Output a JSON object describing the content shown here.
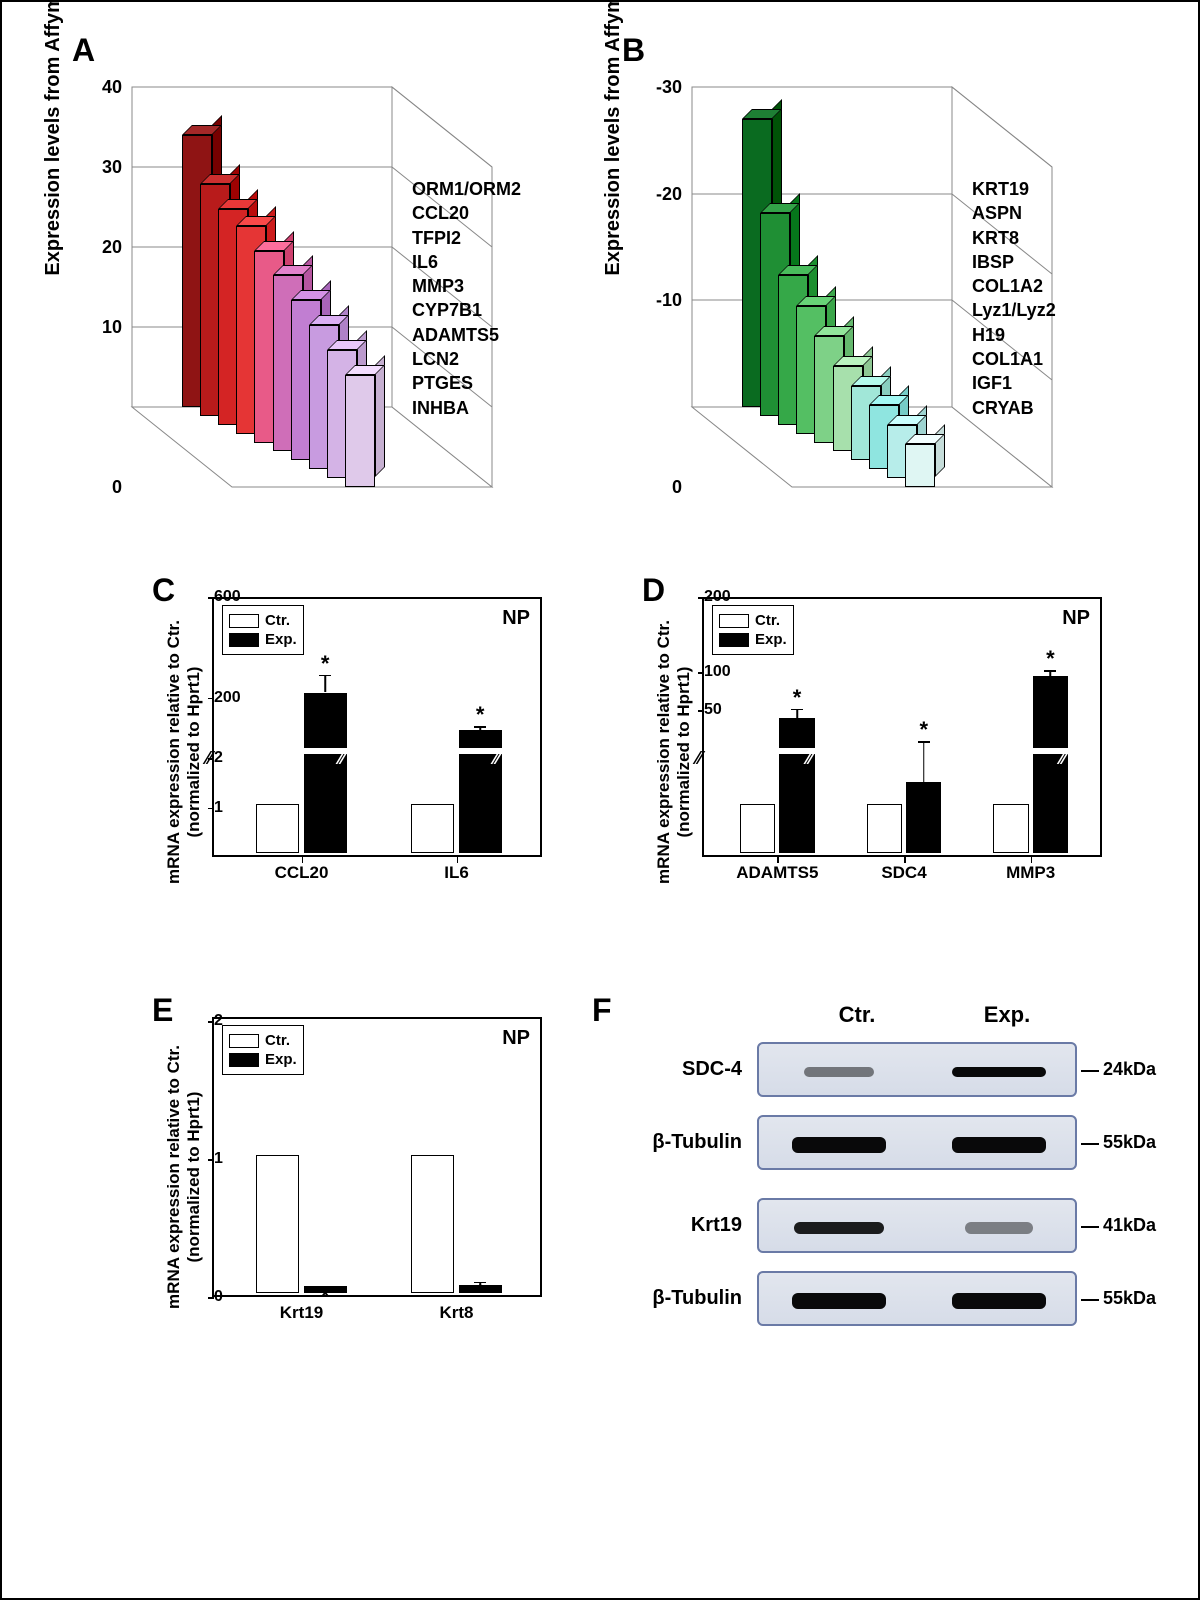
{
  "panelA": {
    "label": "A",
    "type": "3d-bar",
    "ylabel": "Expression levels from Affymetrix array",
    "yticks": [
      0,
      10,
      20,
      30,
      40
    ],
    "ylim": [
      0,
      40
    ],
    "genes": [
      "ORM1/ORM2",
      "CCL20",
      "TFPI2",
      "IL6",
      "MMP3",
      "CYP7B1",
      "ADAMTS5",
      "LCN2",
      "PTGES",
      "INHBA"
    ],
    "values_back_to_front": [
      34,
      29,
      27,
      26,
      24,
      22,
      20,
      18,
      16,
      14
    ],
    "colors_back_to_front": [
      "#8f1414",
      "#b81b1b",
      "#d42424",
      "#e53535",
      "#e85a88",
      "#cf6eb8",
      "#c17ed2",
      "#c89be0",
      "#d4b3e6",
      "#dfc9ea"
    ],
    "grid_color": "#888888",
    "floor_color": "#ffffff",
    "wall_color": "#ffffff"
  },
  "panelB": {
    "label": "B",
    "type": "3d-bar",
    "ylabel": "Expression levels from Affymetrix array",
    "yticks": [
      0,
      -10,
      -20,
      -30
    ],
    "ylim": [
      0,
      -30
    ],
    "genes": [
      "KRT19",
      "ASPN",
      "KRT8",
      "IBSP",
      "COL1A2",
      "Lyz1/Lyz2",
      "H19",
      "COL1A1",
      "IGF1",
      "CRYAB"
    ],
    "values_back_to_front": [
      -27,
      -19,
      -14,
      -12,
      -10,
      -8,
      -7,
      -6,
      -5,
      -4
    ],
    "colors_back_to_front": [
      "#0a6b20",
      "#1f8f34",
      "#35a848",
      "#54bf63",
      "#7ed187",
      "#a7e0ac",
      "#a1e7d8",
      "#8fe5e0",
      "#b7edea",
      "#dff6f3"
    ],
    "grid_color": "#888888"
  },
  "panelC": {
    "label": "C",
    "type": "bar-broken-axis",
    "ylabel_line1": "mRNA expression  relative to Ctr.",
    "ylabel_line2": "(normalized to Hprt1)",
    "np": "NP",
    "legend": {
      "ctr": "Ctr.",
      "exp": "Exp."
    },
    "categories": [
      "CCL20",
      "IL6"
    ],
    "lower_seg": {
      "range": [
        0,
        2
      ],
      "ticks": [
        1,
        2
      ]
    },
    "upper_seg": {
      "range": [
        0,
        600
      ],
      "ticks": [
        200,
        600
      ]
    },
    "ctr_values": [
      1,
      1
    ],
    "exp_values": [
      220,
      70
    ],
    "exp_err": [
      70,
      15
    ],
    "stars": [
      "*",
      "*"
    ],
    "colors": {
      "ctr": "#ffffff",
      "exp": "#000000"
    }
  },
  "panelD": {
    "label": "D",
    "type": "bar-broken-axis",
    "ylabel_line1": "mRNA expression  relative to Ctr.",
    "ylabel_line2": "(normalized to Hprt1)",
    "np": "NP",
    "legend": {
      "ctr": "Ctr.",
      "exp": "Exp."
    },
    "categories": [
      "ADAMTS5",
      "SDC4",
      "MMP3"
    ],
    "lower_seg": {
      "range": [
        0,
        2
      ],
      "ticks": []
    },
    "upper_seg": {
      "range": [
        0,
        200
      ],
      "ticks": [
        50,
        100,
        200
      ]
    },
    "ctr_values": [
      1,
      1,
      1
    ],
    "exp_values": [
      40,
      8,
      95
    ],
    "exp_err": [
      12,
      5,
      8
    ],
    "exp_goes_upper": [
      true,
      false,
      true
    ],
    "stars": [
      "*",
      "*",
      "*"
    ],
    "colors": {
      "ctr": "#ffffff",
      "exp": "#000000"
    }
  },
  "panelE": {
    "label": "E",
    "type": "bar",
    "ylabel_line1": "mRNA expression  relative to  Ctr.",
    "ylabel_line2": "(normalized to Hprt1)",
    "np": "NP",
    "legend": {
      "ctr": "Ctr.",
      "exp": "Exp."
    },
    "categories": [
      "Krt19",
      "Krt8"
    ],
    "ylim": [
      0,
      2
    ],
    "yticks": [
      0,
      1,
      2
    ],
    "ctr_values": [
      1,
      1
    ],
    "exp_values": [
      0.05,
      0.06
    ],
    "exp_err": [
      0.03,
      0.05
    ],
    "stars": [
      "*",
      "*"
    ],
    "colors": {
      "ctr": "#ffffff",
      "exp": "#000000"
    }
  },
  "panelF": {
    "label": "F",
    "type": "western-blot",
    "headers": [
      "Ctr.",
      "Exp."
    ],
    "rows": [
      {
        "label": "SDC-4",
        "kda": "24kDa",
        "ctr_intensity": 0.35,
        "exp_intensity": 0.95,
        "height": 10
      },
      {
        "label": "β-Tubulin",
        "kda": "55kDa",
        "ctr_intensity": 0.95,
        "exp_intensity": 0.95,
        "height": 16
      },
      {
        "label": "Krt19",
        "kda": "41kDa",
        "ctr_intensity": 0.85,
        "exp_intensity": 0.3,
        "height": 12
      },
      {
        "label": "β-Tubulin",
        "kda": "55kDa",
        "ctr_intensity": 0.95,
        "exp_intensity": 0.95,
        "height": 16
      }
    ],
    "box_border": "#6a7aa6",
    "box_bg": "#dde2ec",
    "band_color": "#1a1a1a"
  }
}
